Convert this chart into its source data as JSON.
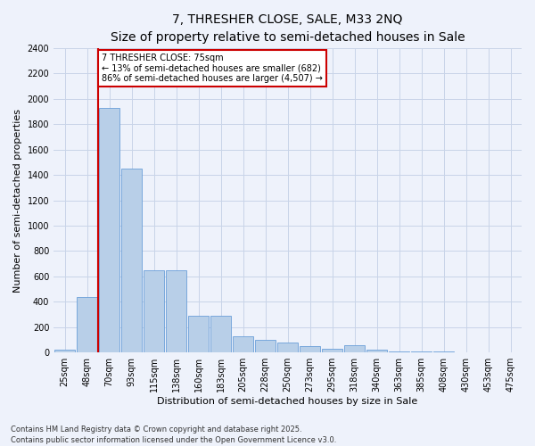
{
  "title": "7, THRESHER CLOSE, SALE, M33 2NQ",
  "subtitle": "Size of property relative to semi-detached houses in Sale",
  "xlabel": "Distribution of semi-detached houses by size in Sale",
  "ylabel": "Number of semi-detached properties",
  "categories": [
    "25sqm",
    "48sqm",
    "70sqm",
    "93sqm",
    "115sqm",
    "138sqm",
    "160sqm",
    "183sqm",
    "205sqm",
    "228sqm",
    "250sqm",
    "273sqm",
    "295sqm",
    "318sqm",
    "340sqm",
    "363sqm",
    "385sqm",
    "408sqm",
    "430sqm",
    "453sqm",
    "475sqm"
  ],
  "values": [
    25,
    440,
    1930,
    1450,
    650,
    650,
    290,
    290,
    130,
    100,
    80,
    50,
    30,
    55,
    20,
    10,
    5,
    5,
    2,
    0,
    0
  ],
  "bar_color": "#b8cfe8",
  "bar_edge_color": "#6a9fd8",
  "grid_color": "#c8d4e8",
  "property_size": "75sqm",
  "pct_smaller": 13,
  "count_smaller": 682,
  "pct_larger": 86,
  "count_larger": 4507,
  "annotation_box_color": "#cc0000",
  "vline_color": "#cc0000",
  "vline_x": 1.5,
  "ylim": [
    0,
    2400
  ],
  "yticks": [
    0,
    200,
    400,
    600,
    800,
    1000,
    1200,
    1400,
    1600,
    1800,
    2000,
    2200,
    2400
  ],
  "footer": "Contains HM Land Registry data © Crown copyright and database right 2025.\nContains public sector information licensed under the Open Government Licence v3.0.",
  "bg_color": "#eef2fb",
  "plot_bg_color": "#eef2fb",
  "title_fontsize": 10,
  "subtitle_fontsize": 9,
  "ylabel_fontsize": 8,
  "xlabel_fontsize": 8,
  "tick_fontsize": 7,
  "annotation_fontsize": 7,
  "footer_fontsize": 6
}
